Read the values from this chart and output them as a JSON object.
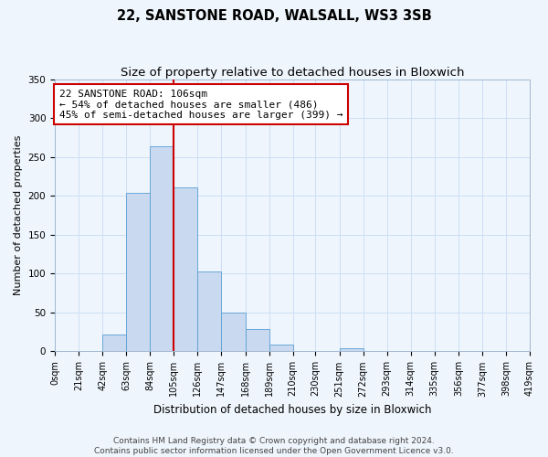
{
  "title": "22, SANSTONE ROAD, WALSALL, WS3 3SB",
  "subtitle": "Size of property relative to detached houses in Bloxwich",
  "xlabel": "Distribution of detached houses by size in Bloxwich",
  "ylabel": "Number of detached properties",
  "bin_edges": [
    0,
    21,
    42,
    63,
    84,
    105,
    126,
    147,
    168,
    189,
    210,
    230,
    251,
    272,
    293,
    314,
    335,
    356,
    377,
    398,
    419
  ],
  "bin_counts": [
    0,
    0,
    22,
    204,
    264,
    211,
    103,
    50,
    29,
    9,
    1,
    0,
    4,
    0,
    1,
    0,
    1,
    0,
    1,
    1
  ],
  "bar_color": "#c8d9f0",
  "bar_edge_color": "#5a9fd4",
  "vline_x": 105,
  "vline_color": "#cc0000",
  "annotation_text": "22 SANSTONE ROAD: 106sqm\n← 54% of detached houses are smaller (486)\n45% of semi-detached houses are larger (399) →",
  "annotation_box_facecolor": "#ffffff",
  "annotation_box_edgecolor": "#cc0000",
  "tick_labels": [
    "0sqm",
    "21sqm",
    "42sqm",
    "63sqm",
    "84sqm",
    "105sqm",
    "126sqm",
    "147sqm",
    "168sqm",
    "189sqm",
    "210sqm",
    "230sqm",
    "251sqm",
    "272sqm",
    "293sqm",
    "314sqm",
    "335sqm",
    "356sqm",
    "377sqm",
    "398sqm",
    "419sqm"
  ],
  "ylim": [
    0,
    350
  ],
  "yticks": [
    0,
    50,
    100,
    150,
    200,
    250,
    300,
    350
  ],
  "grid_color": "#ccdff5",
  "background_color": "#eef5fc",
  "footer_text": "Contains HM Land Registry data © Crown copyright and database right 2024.\nContains public sector information licensed under the Open Government Licence v3.0.",
  "title_fontsize": 10.5,
  "subtitle_fontsize": 9.5,
  "xlabel_fontsize": 8.5,
  "ylabel_fontsize": 8,
  "tick_fontsize": 7,
  "annotation_fontsize": 8,
  "footer_fontsize": 6.5
}
